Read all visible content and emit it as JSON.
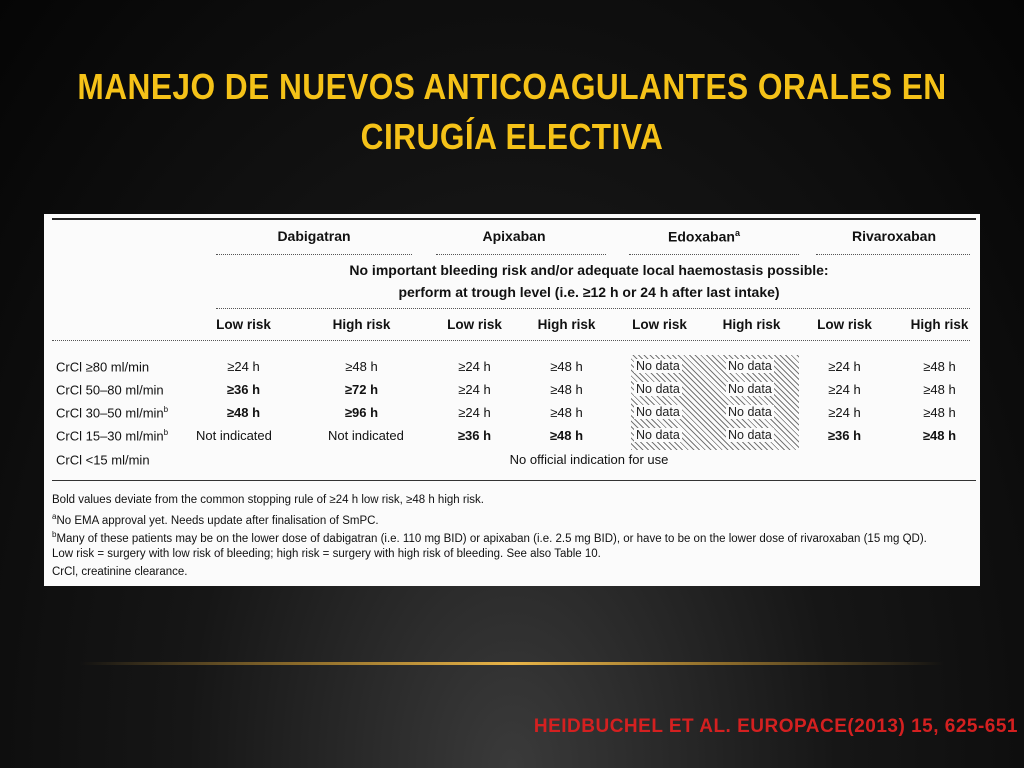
{
  "slide": {
    "title_line1": "MANEJO DE NUEVOS ANTICOAGULANTES ORALES EN",
    "title_line2": "CIRUGÍA ELECTIVA",
    "citation": "HEIDBUCHEL ET AL. EUROPACE(2013) 15, 625-651"
  },
  "table": {
    "drugs": [
      "Dabigatran",
      "Apixaban",
      "Edoxaban",
      "Rivaroxaban"
    ],
    "edoxaban_marker": "a",
    "notice_line1": "No important bleeding risk and/or adequate local haemostasis possible:",
    "notice_line2": "perform at trough level (i.e. ≥12 h or 24 h after last intake)",
    "risk_headers": [
      "Low risk",
      "High risk",
      "Low risk",
      "High risk",
      "Low risk",
      "High risk",
      "Low risk",
      "High risk"
    ],
    "rows": [
      {
        "label": "CrCl ≥80 ml/min",
        "marker": "",
        "cells": [
          "≥24 h",
          "≥48 h",
          "≥24 h",
          "≥48 h",
          "No data",
          "No data",
          "≥24 h",
          "≥48 h"
        ]
      },
      {
        "label": "CrCl 50–80 ml/min",
        "marker": "",
        "cells": [
          "≥36 h",
          "≥72 h",
          "≥24 h",
          "≥48 h",
          "No data",
          "No data",
          "≥24 h",
          "≥48 h"
        ]
      },
      {
        "label": "CrCl 30–50 ml/min",
        "marker": "b",
        "cells": [
          "≥48 h",
          "≥96 h",
          "≥24 h",
          "≥48 h",
          "No data",
          "No data",
          "≥24 h",
          "≥48 h"
        ]
      },
      {
        "label": "CrCl 15–30 ml/min",
        "marker": "b",
        "cells": [
          "Not indicated",
          "Not indicated",
          "≥36 h",
          "≥48 h",
          "No data",
          "No data",
          "≥36 h",
          "≥48 h"
        ]
      },
      {
        "label": "CrCl <15 ml/min",
        "marker": "",
        "span_text": "No official indication for use"
      }
    ],
    "footnotes": {
      "f1": "Bold values deviate from the common stopping rule of ≥24 h low risk, ≥48 h high risk.",
      "f2_marker": "a",
      "f2": "No EMA approval yet. Needs update after finalisation of SmPC.",
      "f3_marker": "b",
      "f3": "Many of these patients may be on the lower dose of dabigatran (i.e. 110 mg BID) or apixaban (i.e. 2.5 mg BID), or have to be on the lower dose of rivaroxaban (15 mg QD).",
      "f4": "Low risk = surgery with low risk of bleeding; high risk = surgery with high risk of bleeding. See also Table 10.",
      "f5": "CrCl, creatinine clearance."
    }
  }
}
